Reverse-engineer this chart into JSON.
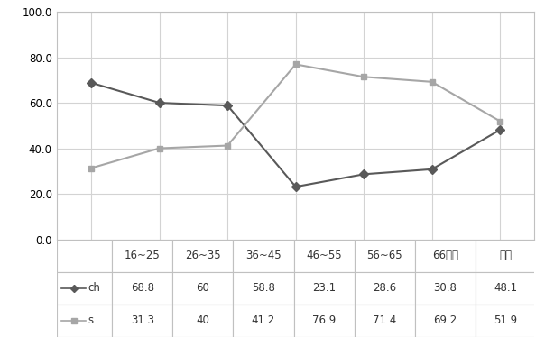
{
  "categories": [
    "16~25",
    "26~35",
    "36~45",
    "46~55",
    "56~65",
    "66이상",
    "전체"
  ],
  "ch_values": [
    68.8,
    60,
    58.8,
    23.1,
    28.6,
    30.8,
    48.1
  ],
  "s_values": [
    31.3,
    40,
    41.2,
    76.9,
    71.4,
    69.2,
    51.9
  ],
  "ch_color": "#595959",
  "s_color": "#a6a6a6",
  "ylim": [
    0,
    100
  ],
  "yticks": [
    0.0,
    20.0,
    40.0,
    60.0,
    80.0,
    100.0
  ],
  "legend_ch": "ch",
  "legend_s": "s",
  "background_color": "#ffffff",
  "grid_color": "#d3d3d3",
  "table_row_ch": [
    "68.8",
    "60",
    "58.8",
    "23.1",
    "28.6",
    "30.8",
    "48.1"
  ],
  "table_row_s": [
    "31.3",
    "40",
    "41.2",
    "76.9",
    "71.4",
    "69.2",
    "51.9"
  ],
  "border_color": "#c0c0c0"
}
